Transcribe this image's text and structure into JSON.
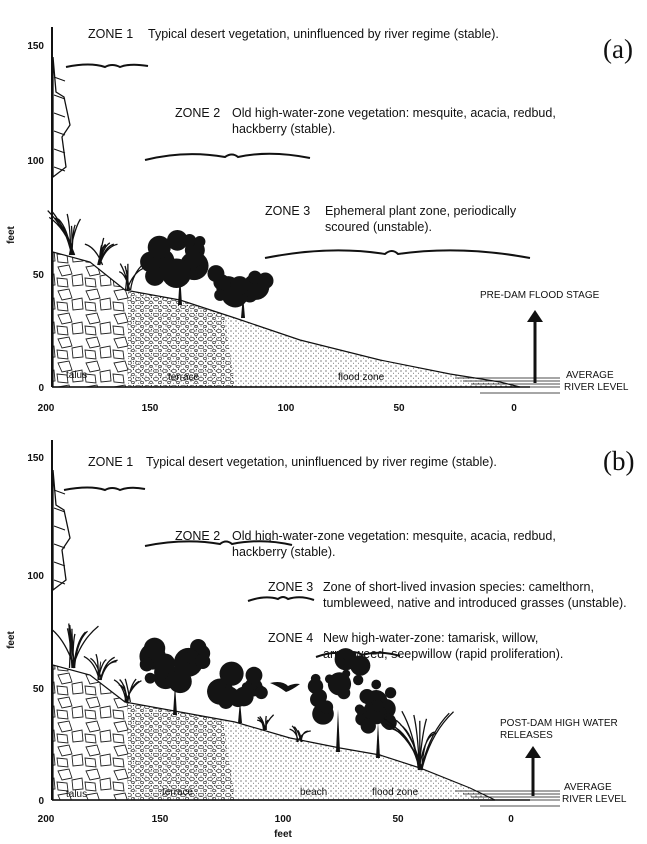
{
  "panels": [
    {
      "label": "(a)",
      "y_axis": {
        "title": "feet",
        "ticks": [
          "150",
          "100",
          "50",
          "0"
        ]
      },
      "x_axis": {
        "ticks": [
          "200",
          "150",
          "100",
          "50",
          "0"
        ]
      },
      "zones": [
        {
          "name": "ZONE 1",
          "lines": [
            "Typical desert vegetation, uninfluenced by river regime (stable)."
          ]
        },
        {
          "name": "ZONE 2",
          "lines": [
            "Old high-water-zone vegetation: mesquite, acacia, redbud,",
            "hackberry (stable)."
          ]
        },
        {
          "name": "ZONE 3",
          "lines": [
            "Ephemeral plant zone, periodically",
            "scoured (unstable)."
          ]
        }
      ],
      "ground_labels": [
        "talus",
        "terrace",
        "flood zone"
      ],
      "stage_label": "PRE-DAM FLOOD STAGE",
      "river_label": [
        "AVERAGE",
        "RIVER LEVEL"
      ]
    },
    {
      "label": "(b)",
      "y_axis": {
        "title": "feet",
        "ticks": [
          "150",
          "100",
          "50",
          "0"
        ]
      },
      "x_axis": {
        "ticks": [
          "200",
          "150",
          "100",
          "50",
          "0"
        ],
        "title": "feet"
      },
      "zones": [
        {
          "name": "ZONE 1",
          "lines": [
            "Typical desert vegetation, uninfluenced by river regime (stable)."
          ]
        },
        {
          "name": "ZONE 2",
          "lines": [
            "Old high-water-zone vegetation: mesquite, acacia, redbud,",
            "hackberry (stable)."
          ]
        },
        {
          "name": "ZONE 3",
          "lines": [
            "Zone of short-lived invasion species: camelthorn,",
            "tumbleweed, native and introduced grasses (unstable)."
          ]
        },
        {
          "name": "ZONE 4",
          "lines": [
            "New high-water-zone: tamarisk, willow,",
            "arrowweed, seepwillow (rapid proliferation)."
          ]
        }
      ],
      "ground_labels": [
        "talus",
        "terrace",
        "beach",
        "flood zone"
      ],
      "stage_label": [
        "POST-DAM HIGH WATER",
        "RELEASES"
      ],
      "river_label": [
        "AVERAGE",
        "RIVER LEVEL"
      ]
    }
  ]
}
